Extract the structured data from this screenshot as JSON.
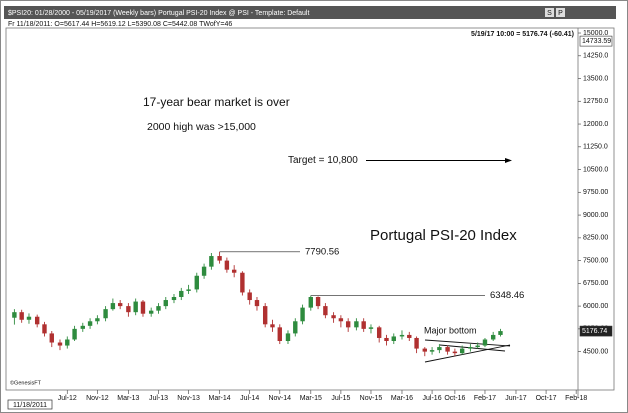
{
  "window_title": "$PSI20: 01/28/2000 - 05/19/2017 (Weekly bars)   Portugal PSI-20 Index @ PSI  -  Template: Default",
  "window_buttons": [
    "S",
    "P"
  ],
  "info_line": "Fr    11/18/2011:  O=5617.44  H=5619.12  L=5390.08  C=5442.08  TWofY=46",
  "status_line": "5/19/17 10:00 = 5176.74 (-60.41)",
  "cursor_date": "11/18/2011",
  "watermark": "©GenesisFT",
  "chart_data": {
    "type": "candlestick",
    "title": "Portugal PSI-20 Index",
    "annotations": [
      "17-year bear market is over",
      "2000 high was >15,000",
      "Major bottom"
    ],
    "target": {
      "value": 10800,
      "label": "Target = 10,800"
    },
    "levels": [
      {
        "value": 7790.56,
        "label": "7790.56"
      },
      {
        "value": 6348.46,
        "label": "6348.46"
      }
    ],
    "last_price": {
      "value": 5176.74,
      "label": "5176.74"
    },
    "high_marker": {
      "value": 14733.59,
      "label": "14733.59"
    },
    "up_color": "#2e8b3e",
    "down_color": "#b03030",
    "xlim": [
      2011.85,
      2018.1
    ],
    "xticks": [
      {
        "value": 2012.5,
        "label": "Jul-12"
      },
      {
        "value": 2012.83,
        "label": "Nov-12"
      },
      {
        "value": 2013.17,
        "label": "Mar-13"
      },
      {
        "value": 2013.5,
        "label": "Jul-13"
      },
      {
        "value": 2013.83,
        "label": "Nov-13"
      },
      {
        "value": 2014.17,
        "label": "Mar-14"
      },
      {
        "value": 2014.5,
        "label": "Jul-14"
      },
      {
        "value": 2014.83,
        "label": "Nov-14"
      },
      {
        "value": 2015.17,
        "label": "Mar-15"
      },
      {
        "value": 2015.5,
        "label": "Jul-15"
      },
      {
        "value": 2015.83,
        "label": "Nov-15"
      },
      {
        "value": 2016.17,
        "label": "Mar-16"
      },
      {
        "value": 2016.5,
        "label": "Jul-16"
      },
      {
        "value": 2016.75,
        "label": "Oct-16"
      },
      {
        "value": 2017.08,
        "label": "Feb-17"
      },
      {
        "value": 2017.42,
        "label": "Jun-17"
      },
      {
        "value": 2017.75,
        "label": "Oct-17"
      },
      {
        "value": 2018.08,
        "label": "Feb-18"
      }
    ],
    "ylim": [
      3400,
      15050
    ],
    "yticks": [
      {
        "value": 4500,
        "label": "4500.00"
      },
      {
        "value": 5250,
        "label": "5250.00"
      },
      {
        "value": 6000,
        "label": "6000.00"
      },
      {
        "value": 6750,
        "label": "6750.00"
      },
      {
        "value": 7500,
        "label": "7500.00"
      },
      {
        "value": 8250,
        "label": "8250.00"
      },
      {
        "value": 9000,
        "label": "9000.00"
      },
      {
        "value": 9750,
        "label": "9750.00"
      },
      {
        "value": 10500,
        "label": "10500.0"
      },
      {
        "value": 11250,
        "label": "11250.0"
      },
      {
        "value": 12000,
        "label": "12000.0"
      },
      {
        "value": 12750,
        "label": "12750.0"
      },
      {
        "value": 13500,
        "label": "13500.0"
      },
      {
        "value": 14250,
        "label": "14250.0"
      },
      {
        "value": 15000,
        "label": "15000.0"
      }
    ],
    "x": [
      2011.92,
      2012,
      2012.08,
      2012.17,
      2012.25,
      2012.33,
      2012.42,
      2012.5,
      2012.58,
      2012.67,
      2012.75,
      2012.83,
      2012.92,
      2013,
      2013.08,
      2013.17,
      2013.25,
      2013.33,
      2013.42,
      2013.5,
      2013.58,
      2013.67,
      2013.75,
      2013.83,
      2013.92,
      2014,
      2014.08,
      2014.17,
      2014.25,
      2014.33,
      2014.42,
      2014.5,
      2014.58,
      2014.67,
      2014.75,
      2014.83,
      2014.92,
      2015,
      2015.08,
      2015.17,
      2015.25,
      2015.33,
      2015.42,
      2015.5,
      2015.58,
      2015.67,
      2015.75,
      2015.83,
      2015.92,
      2016,
      2016.08,
      2016.17,
      2016.25,
      2016.33,
      2016.42,
      2016.5,
      2016.58,
      2016.67,
      2016.75,
      2016.83,
      2016.92,
      2017,
      2017.08,
      2017.17,
      2017.25
    ],
    "open": [
      5617,
      5800,
      5550,
      5650,
      5400,
      5100,
      4800,
      4700,
      4900,
      5250,
      5350,
      5500,
      5600,
      5900,
      6100,
      6000,
      5800,
      6150,
      5750,
      5850,
      6000,
      6200,
      6300,
      6500,
      6550,
      7000,
      7300,
      7650,
      7500,
      7200,
      7100,
      6450,
      6200,
      6000,
      5400,
      5300,
      4850,
      5100,
      5500,
      5950,
      6300,
      6000,
      5700,
      5600,
      5500,
      5300,
      5500,
      5250,
      5300,
      4950,
      4850,
      5000,
      5050,
      4950,
      4600,
      4500,
      4550,
      4650,
      4500,
      4450,
      4600,
      4650,
      4700,
      4900,
      5050
    ],
    "high": [
      5900,
      5880,
      5760,
      5720,
      5480,
      5180,
      4900,
      5000,
      5350,
      5450,
      5600,
      5700,
      6000,
      6250,
      6200,
      6100,
      6250,
      6200,
      5950,
      6100,
      6300,
      6400,
      6600,
      6700,
      7100,
      7400,
      7750,
      7790.56,
      7600,
      7350,
      7150,
      6550,
      6300,
      6100,
      5550,
      5400,
      5200,
      5600,
      6050,
      6348.46,
      6320,
      6100,
      5800,
      5700,
      5600,
      5600,
      5600,
      5400,
      5350,
      5050,
      5100,
      5200,
      5150,
      5000,
      4650,
      4650,
      4750,
      4700,
      4600,
      4700,
      4750,
      4800,
      4950,
      5150,
      5250
    ],
    "low": [
      5390,
      5450,
      5420,
      5300,
      5000,
      4650,
      4550,
      4600,
      4850,
      5150,
      5250,
      5400,
      5500,
      5850,
      5900,
      5650,
      5700,
      5650,
      5650,
      5750,
      5900,
      6100,
      6200,
      6400,
      6450,
      6900,
      7200,
      7400,
      7100,
      6950,
      6350,
      6050,
      5850,
      5300,
      5150,
      4750,
      4750,
      5000,
      5400,
      5850,
      5900,
      5600,
      5450,
      5300,
      5150,
      5200,
      5150,
      5100,
      4800,
      4700,
      4750,
      4900,
      4850,
      4450,
      4350,
      4400,
      4450,
      4400,
      4350,
      4400,
      4500,
      4600,
      4650,
      4850,
      5000
    ],
    "close": [
      5800,
      5550,
      5650,
      5400,
      5100,
      4800,
      4700,
      4900,
      5250,
      5350,
      5500,
      5600,
      5900,
      6100,
      6000,
      5800,
      6150,
      5750,
      5850,
      6000,
      6200,
      6300,
      6500,
      6550,
      7000,
      7300,
      7650,
      7500,
      7200,
      7100,
      6450,
      6200,
      6000,
      5400,
      5300,
      4850,
      5100,
      5500,
      5950,
      6300,
      6000,
      5700,
      5600,
      5500,
      5300,
      5500,
      5250,
      5300,
      4950,
      4850,
      5000,
      5050,
      4950,
      4600,
      4500,
      4550,
      4650,
      4500,
      4450,
      4600,
      4650,
      4700,
      4900,
      5050,
      5176.74
    ]
  }
}
